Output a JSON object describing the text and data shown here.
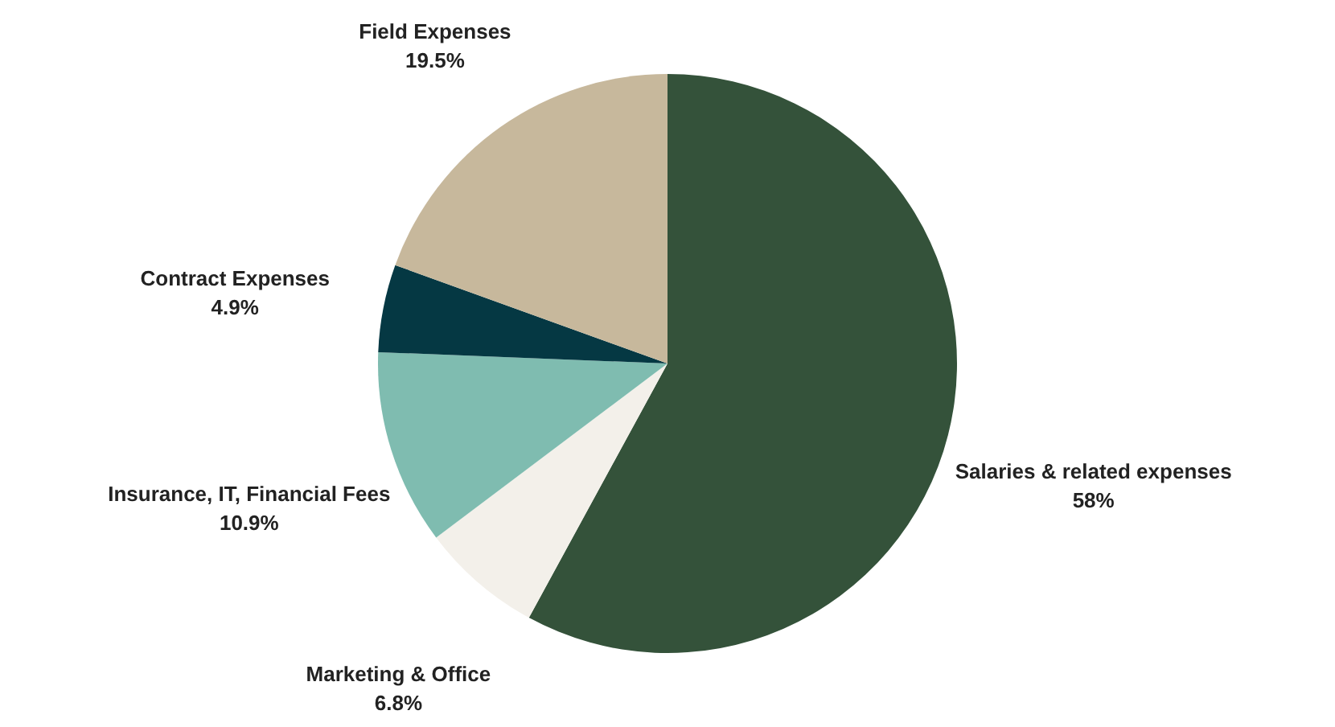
{
  "chart_data": {
    "type": "pie",
    "categories": [
      "Salaries & related expenses",
      "Marketing & Office",
      "Insurance, IT, Financial Fees",
      "Contract Expenses",
      "Field Expenses"
    ],
    "values": [
      58,
      6.8,
      10.9,
      4.9,
      19.5
    ],
    "colors": [
      "#34523a",
      "#f3f0ea",
      "#7fbcb0",
      "#053843",
      "#c7b89c"
    ],
    "value_labels": [
      "58%",
      "6.8%",
      "10.9%",
      "4.9%",
      "19.5%"
    ]
  }
}
